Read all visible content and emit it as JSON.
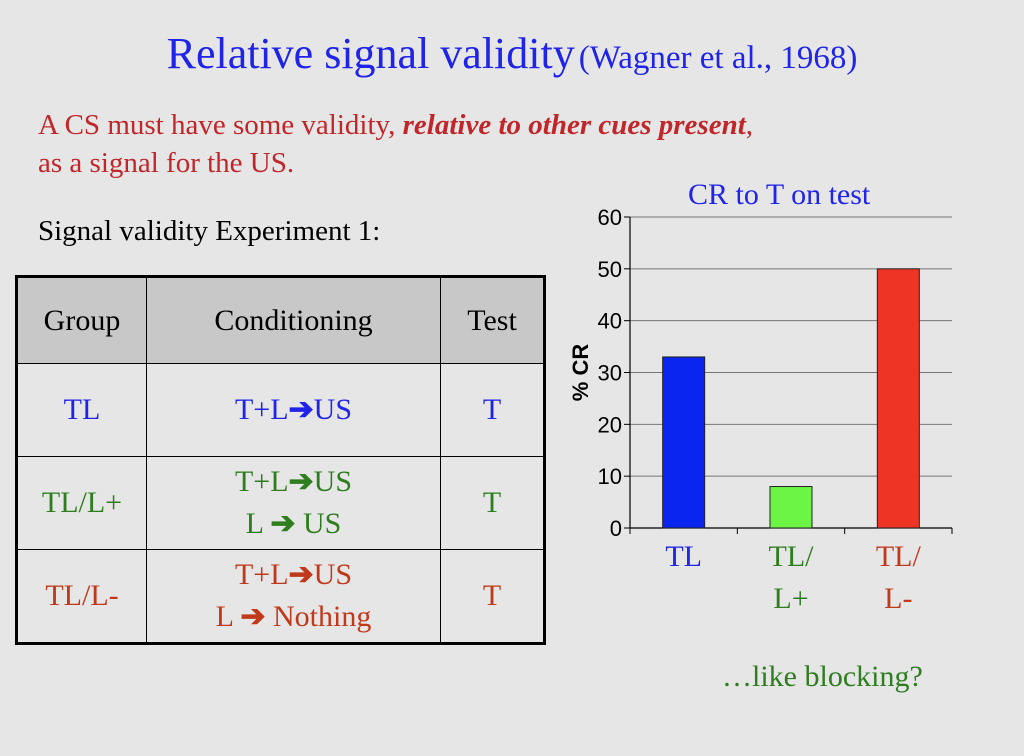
{
  "title": {
    "main": "Relative signal validity",
    "citation": "(Wagner et al., 1968)"
  },
  "intro": {
    "part1": "A CS must have some validity, ",
    "emphasis": "relative to other cues present",
    "part2": ",",
    "line2": "as a signal for the US."
  },
  "experiment_label": "Signal validity Experiment 1:",
  "table": {
    "headers": [
      "Group",
      "Conditioning",
      "Test"
    ],
    "rows": [
      {
        "group": "TL",
        "cond": [
          {
            "left": "T+L",
            "arrow": "➔",
            "right": "US"
          }
        ],
        "test": "T",
        "color": "#1f24e8"
      },
      {
        "group": "TL/L+",
        "cond": [
          {
            "left": "T+L",
            "arrow": "➔",
            "right": "US"
          },
          {
            "left": "L ",
            "arrow": "➔",
            "right": " US"
          }
        ],
        "test": "T",
        "color": "#2e7d1f"
      },
      {
        "group": "TL/L-",
        "cond": [
          {
            "left": "T+L",
            "arrow": "➔",
            "right": "US"
          },
          {
            "left": "L ",
            "arrow": "➔",
            "right": " Nothing"
          }
        ],
        "test": "T",
        "color": "#c0391b"
      }
    ]
  },
  "chart_data": {
    "type": "bar",
    "title": "CR to T on test",
    "ylabel": "% CR",
    "ylim": [
      0,
      60
    ],
    "yticks": [
      0,
      10,
      20,
      30,
      40,
      50,
      60
    ],
    "grid": true,
    "categories": [
      {
        "lines": [
          "TL"
        ],
        "color": "#1f24e8"
      },
      {
        "lines": [
          "TL/",
          "L+"
        ],
        "color": "#2e7d1f"
      },
      {
        "lines": [
          "TL/",
          "L-"
        ],
        "color": "#c0391b"
      }
    ],
    "values": [
      33,
      8,
      50
    ],
    "bar_colors": [
      "#0a25f0",
      "#6cf545",
      "#ee3424"
    ]
  },
  "footnote": "…like blocking?"
}
